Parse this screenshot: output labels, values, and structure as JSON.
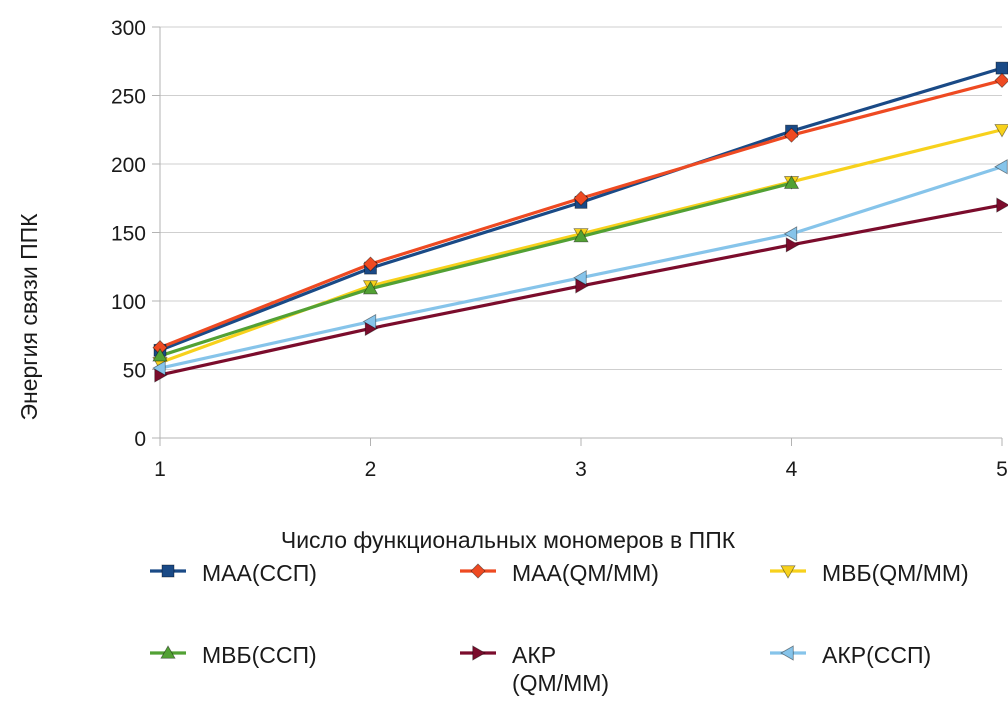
{
  "chart_data": {
    "type": "line",
    "title": "",
    "xlabel": "Число функциональных мономеров в ППК",
    "ylabel": "Энергия связи ППК",
    "x": [
      1,
      2,
      3,
      4,
      5
    ],
    "xlim": [
      1,
      5
    ],
    "ylim": [
      0,
      300
    ],
    "yticks": [
      0,
      50,
      100,
      150,
      200,
      250,
      300
    ],
    "xticks": [
      1,
      2,
      3,
      4,
      5
    ],
    "grid": "horizontal",
    "legend_position": "bottom",
    "series": [
      {
        "name": "МАА(ССП)",
        "values": [
          64,
          124,
          172,
          224,
          270
        ],
        "color": "#1a4a86",
        "marker": "square"
      },
      {
        "name": "МАА(QM/MM)",
        "values": [
          66,
          127,
          175,
          221,
          261
        ],
        "color": "#ee4a22",
        "marker": "diamond"
      },
      {
        "name": "МВБ(QM/MM)",
        "values": [
          55,
          111,
          149,
          187,
          225
        ],
        "color": "#f7d11c",
        "marker": "triangle-down"
      },
      {
        "name": "МВБ(ССП)",
        "values": [
          60,
          109,
          147,
          186,
          null
        ],
        "color": "#52a134",
        "marker": "triangle-up"
      },
      {
        "name": "АКР (QM/MM)",
        "values": [
          46,
          80,
          111,
          141,
          170
        ],
        "color": "#7b0c2c",
        "marker": "triangle-right"
      },
      {
        "name": "АКР(ССП)",
        "values": [
          51,
          85,
          117,
          149,
          198
        ],
        "color": "#86c4ea",
        "marker": "triangle-left"
      }
    ]
  }
}
